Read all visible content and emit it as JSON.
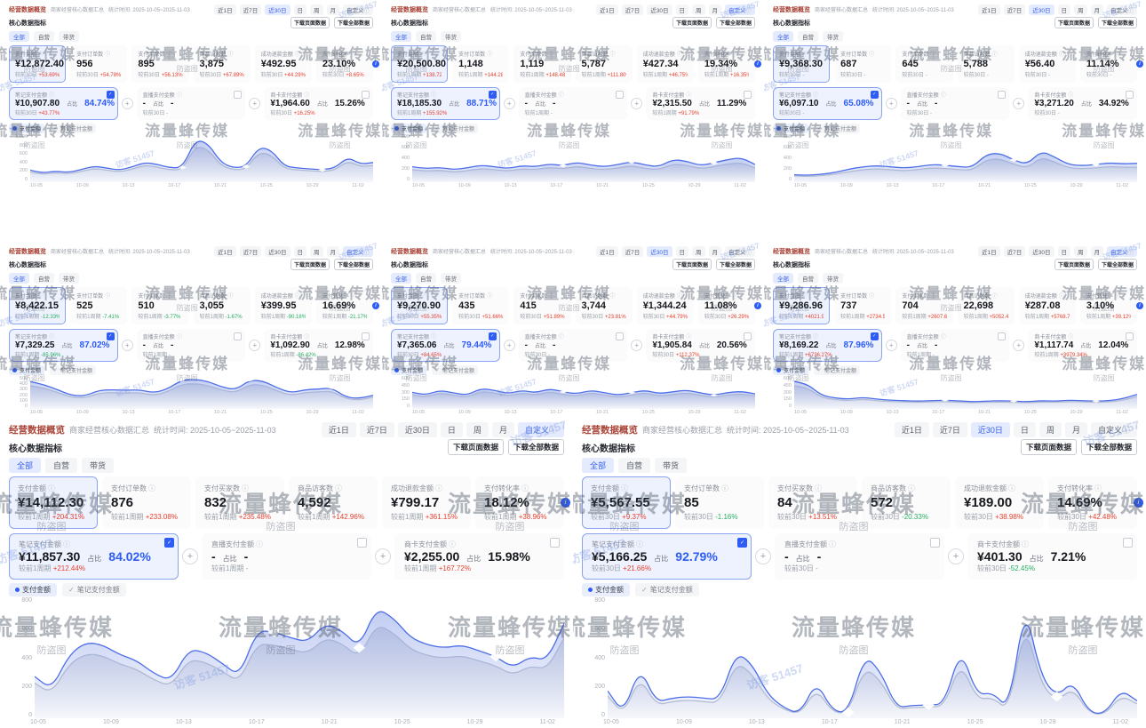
{
  "shared": {
    "title": "经营数据概览",
    "subtitle": "商家经营核心数据汇总",
    "section_title": "核心数据指标",
    "ranges": [
      "近1日",
      "近7日",
      "近30日",
      "日",
      "周",
      "月",
      "自定义"
    ],
    "custom_mark": "ⓘ",
    "downloads": [
      "下载页面数据",
      "下载全部数据"
    ],
    "tabs": [
      "全部",
      "自营",
      "带货"
    ],
    "metric_labels": [
      "支付金额",
      "支付订单数",
      "支付买家数",
      "商品访客数",
      "成功退款金额",
      "支付转化率"
    ],
    "row2_labels": [
      "笔记支付金额",
      "直播支付金额",
      "商卡支付金额"
    ],
    "ratio_label": "占比",
    "legend": [
      "支付金额",
      "笔记支付金额"
    ],
    "icons": {
      "info": "?",
      "plus": "+",
      "check": "✓",
      "info_i": "i"
    },
    "watermark": {
      "brand": "流量蜂传媒",
      "tag": "防盗图",
      "visitor": "访客 51457"
    },
    "x_labels": [
      "10-05",
      "10-09",
      "10-13",
      "10-17",
      "10-21",
      "10-25",
      "10-29",
      "11-02"
    ],
    "colors": {
      "accent": "#2d5cf6",
      "up_red": "#e8402e",
      "down_green": "#27ae60",
      "line_blue": "#4d6ee8",
      "line_gray": "#b9c0cf"
    }
  },
  "panels": [
    {
      "row": 1,
      "size": "sm",
      "active_range": 2,
      "stat_time": "统计时间: 2025-10-05~2025-11-03",
      "comp_prefix": "较前30日",
      "values": [
        "¥12,872.40",
        "956",
        "895",
        "3,875",
        "¥492.95",
        "23.10%"
      ],
      "comps": [
        "+53.69%",
        "+54.78%",
        "+56.13%",
        "+67.89%",
        "+44.29%",
        "+8.65%"
      ],
      "row2": [
        {
          "value": "¥10,907.80",
          "pct": "84.74%",
          "comp": "+43.77%"
        },
        {
          "value": "-",
          "pct": "-",
          "comp": "-"
        },
        {
          "value": "¥1,964.60",
          "pct": "15.26%",
          "comp": "+16.25%"
        }
      ],
      "chart": {
        "ymax": 1000,
        "yticks": [
          "1,000",
          "800",
          "600",
          "400",
          "200",
          "0"
        ],
        "line": [
          250,
          190,
          230,
          200,
          260,
          340,
          300,
          250,
          320,
          420,
          380,
          300,
          310,
          920,
          840,
          420,
          300,
          330,
          760,
          690,
          340,
          300,
          280,
          260,
          300,
          540,
          380,
          420
        ],
        "line2": [
          210,
          160,
          195,
          170,
          220,
          290,
          255,
          210,
          270,
          360,
          320,
          255,
          265,
          780,
          715,
          355,
          255,
          280,
          645,
          585,
          290,
          255,
          240,
          220,
          255,
          460,
          325,
          355
        ]
      }
    },
    {
      "row": 1,
      "size": "sm",
      "active_range": 6,
      "stat_time": "统计时间: 2025-10-05~2025-11-03",
      "comp_prefix": "较前1周期",
      "values": [
        "¥20,500.80",
        "1,148",
        "1,119",
        "5,787",
        "¥427.34",
        "19.34%"
      ],
      "comps": [
        "+138.72%",
        "+144.28%",
        "+148.48%",
        "+111.80%",
        "+46.75%",
        "+16.35%"
      ],
      "row2": [
        {
          "value": "¥18,185.30",
          "pct": "88.71%",
          "comp": "+155.92%"
        },
        {
          "value": "-",
          "pct": "-",
          "comp": "-"
        },
        {
          "value": "¥2,315.50",
          "pct": "11.29%",
          "comp": "+91.79%"
        }
      ],
      "chart": {
        "ymax": 800,
        "yticks": [
          "800",
          "600",
          "400",
          "200",
          "0"
        ],
        "line": [
          260,
          230,
          250,
          210,
          240,
          290,
          260,
          230,
          280,
          260,
          310,
          280,
          340,
          290,
          260,
          300,
          350,
          290,
          260,
          390,
          360,
          280,
          330,
          390,
          420,
          300
        ],
        "line2": [
          210,
          185,
          200,
          170,
          190,
          230,
          210,
          185,
          225,
          210,
          250,
          225,
          270,
          230,
          210,
          240,
          280,
          230,
          210,
          310,
          290,
          225,
          265,
          310,
          335,
          240
        ]
      }
    },
    {
      "row": 1,
      "size": "sm",
      "active_range": 2,
      "stat_time": "统计时间: 2025-10-05~2025-11-03",
      "comp_prefix": "较前30日",
      "values": [
        "¥9,368.30",
        "687",
        "645",
        "5,788",
        "¥56.40",
        "11.14%"
      ],
      "comps": [
        "-",
        "-",
        "-",
        "-",
        "-",
        "-"
      ],
      "row2": [
        {
          "value": "¥6,097.10",
          "pct": "65.08%",
          "comp": "-"
        },
        {
          "value": "-",
          "pct": "-",
          "comp": "-"
        },
        {
          "value": "¥3,271.20",
          "pct": "34.92%",
          "comp": "-"
        }
      ],
      "chart": {
        "ymax": 800,
        "yticks": [
          "800",
          "600",
          "400",
          "200",
          "0"
        ],
        "line": [
          120,
          110,
          130,
          160,
          220,
          260,
          280,
          260,
          240,
          260,
          300,
          290,
          260,
          250,
          480,
          500,
          380,
          300,
          540,
          430,
          300,
          280,
          300,
          330,
          310,
          320
        ],
        "line2": [
          100,
          90,
          105,
          130,
          175,
          210,
          225,
          210,
          190,
          210,
          240,
          230,
          210,
          200,
          385,
          400,
          305,
          240,
          430,
          345,
          240,
          225,
          240,
          265,
          250,
          255
        ]
      }
    },
    {
      "row": 2,
      "size": "sm",
      "active_range": 6,
      "stat_time": "统计时间: 2025-10-05~2025-11-03",
      "comp_prefix": "较前1周期",
      "values": [
        "¥8,422.15",
        "525",
        "510",
        "3,055",
        "¥399.95",
        "16.69%"
      ],
      "comps": [
        "-12.33%",
        "-7.41%",
        "-3.77%",
        "-1.67%",
        "-90.18%",
        "-21.17%"
      ],
      "row2": [
        {
          "value": "¥7,329.25",
          "pct": "87.02%",
          "comp": "-85.96%"
        },
        {
          "value": "-",
          "pct": "-",
          "comp": "-"
        },
        {
          "value": "¥1,092.90",
          "pct": "12.98%",
          "comp": "-86.42%"
        }
      ],
      "chart": {
        "ymax": 500,
        "yticks": [
          "500",
          "400",
          "300",
          "200",
          "100",
          "0"
        ],
        "line": [
          430,
          380,
          300,
          210,
          200,
          290,
          300,
          290,
          300,
          250,
          310,
          450,
          470,
          430,
          340,
          300,
          455,
          440,
          330,
          250,
          300,
          310,
          330,
          180,
          160,
          210
        ],
        "line2": [
          365,
          325,
          255,
          180,
          170,
          245,
          255,
          245,
          255,
          210,
          265,
          385,
          400,
          365,
          290,
          255,
          385,
          375,
          280,
          210,
          255,
          265,
          280,
          155,
          135,
          180
        ]
      }
    },
    {
      "row": 2,
      "size": "sm",
      "active_range": 2,
      "stat_time": "统计时间: 2025-10-05~2025-11-03",
      "comp_prefix": "较前30日",
      "values": [
        "¥9,270.90",
        "435",
        "415",
        "3,744",
        "¥1,344.24",
        "11.08%"
      ],
      "comps": [
        "+55.35%",
        "+51.66%",
        "+51.89%",
        "+23.81%",
        "+44.79%",
        "+26.29%"
      ],
      "row2": [
        {
          "value": "¥7,365.06",
          "pct": "79.44%",
          "comp": "+84.65%"
        },
        {
          "value": "-",
          "pct": "-",
          "comp": "-"
        },
        {
          "value": "¥1,905.84",
          "pct": "20.56%",
          "comp": "+112.37%"
        }
      ],
      "chart": {
        "ymax": 600,
        "yticks": [
          "600",
          "450",
          "300",
          "150",
          "0"
        ],
        "line": [
          310,
          260,
          350,
          300,
          255,
          385,
          350,
          285,
          350,
          300,
          380,
          320,
          280,
          350,
          305,
          255,
          305,
          350,
          285,
          320,
          355,
          300,
          255,
          305,
          330,
          280
        ],
        "line2": [
          265,
          220,
          300,
          255,
          215,
          330,
          300,
          240,
          300,
          255,
          325,
          270,
          240,
          300,
          260,
          215,
          260,
          300,
          240,
          270,
          300,
          255,
          215,
          260,
          280,
          240
        ]
      }
    },
    {
      "row": 2,
      "size": "sm",
      "active_range": 6,
      "stat_time": "统计时间: 2025-10-05~2025-11-03",
      "comp_prefix": "较前1周期",
      "values": [
        "¥9,286.96",
        "737",
        "704",
        "22,698",
        "¥287.08",
        "3.10%"
      ],
      "comps": [
        "+4021.98%",
        "+2734.52%",
        "+2607.60%",
        "+5052.46%",
        "+5768.79%",
        "+39.12%"
      ],
      "row2": [
        {
          "value": "¥8,169.22",
          "pct": "87.96%",
          "comp": "+6736.27%"
        },
        {
          "value": "-",
          "pct": "-",
          "comp": "-"
        },
        {
          "value": "¥1,117.74",
          "pct": "12.04%",
          "comp": "+3979.34%"
        }
      ],
      "chart": {
        "ymax": 600,
        "yticks": [
          "600",
          "450",
          "300",
          "150",
          "0"
        ],
        "line": [
          520,
          460,
          250,
          200,
          180,
          215,
          180,
          160,
          150,
          140,
          150,
          160,
          145,
          130,
          140,
          150,
          140,
          130,
          150,
          140,
          160,
          150,
          140,
          150,
          190,
          270
        ],
        "line2": [
          440,
          390,
          210,
          170,
          150,
          180,
          150,
          135,
          125,
          120,
          125,
          135,
          120,
          110,
          120,
          125,
          120,
          110,
          125,
          120,
          135,
          125,
          120,
          125,
          160,
          230
        ]
      }
    },
    {
      "row": 3,
      "size": "lg",
      "active_range": 6,
      "stat_time": "统计时间: 2025-10-05~2025-11-03",
      "comp_prefix": "较前1周期",
      "values": [
        "¥14,112.30",
        "876",
        "832",
        "4,592",
        "¥799.17",
        "18.12%"
      ],
      "comps": [
        "+204.31%",
        "+233.08%",
        "+235.48%",
        "+142.96%",
        "+361.15%",
        "+38.96%"
      ],
      "row2": [
        {
          "value": "¥11,857.30",
          "pct": "84.02%",
          "comp": "+212.44%"
        },
        {
          "value": "-",
          "pct": "-",
          "comp": "-"
        },
        {
          "value": "¥2,255.00",
          "pct": "15.98%",
          "comp": "+167.72%"
        }
      ],
      "chart": {
        "ymax": 800,
        "yticks": [
          "800",
          "600",
          "400",
          "200",
          "0"
        ],
        "line": [
          280,
          190,
          430,
          520,
          500,
          430,
          390,
          300,
          250,
          470,
          450,
          370,
          280,
          600,
          590,
          550,
          520,
          650,
          600,
          480,
          760,
          690,
          550,
          500,
          480,
          500,
          460,
          420,
          340,
          420,
          390,
          650
        ],
        "line2": [
          235,
          160,
          365,
          440,
          425,
          365,
          330,
          255,
          210,
          400,
          380,
          315,
          240,
          510,
          500,
          470,
          440,
          550,
          510,
          410,
          645,
          585,
          470,
          425,
          410,
          425,
          390,
          355,
          290,
          355,
          330,
          550
        ]
      }
    },
    {
      "row": 3,
      "size": "lg",
      "active_range": 2,
      "stat_time": "统计时间: 2025-10-05~2025-11-03",
      "comp_prefix": "较前30日",
      "values": [
        "¥5,567.55",
        "85",
        "84",
        "572",
        "¥189.00",
        "14.69%"
      ],
      "comps": [
        "+9.37%",
        "-1.16%",
        "+13.51%",
        "-20.33%",
        "+38.98%",
        "+42.48%"
      ],
      "row2": [
        {
          "value": "¥5,166.25",
          "pct": "92.79%",
          "comp": "+21.66%"
        },
        {
          "value": "-",
          "pct": "-",
          "comp": "-"
        },
        {
          "value": "¥401.30",
          "pct": "7.21%",
          "comp": "-52.45%"
        }
      ],
      "chart": {
        "ymax": 800,
        "yticks": [
          "800",
          "600",
          "400",
          "200",
          "0"
        ],
        "line": [
          180,
          20,
          350,
          100,
          130,
          140,
          130,
          120,
          450,
          370,
          150,
          60,
          20,
          250,
          40,
          30,
          430,
          320,
          60,
          80,
          80,
          90,
          480,
          150,
          170,
          50,
          790,
          280,
          140,
          250,
          30,
          20,
          190,
          110
        ],
        "line2": [
          145,
          15,
          280,
          80,
          105,
          115,
          105,
          95,
          380,
          300,
          120,
          50,
          15,
          200,
          30,
          25,
          345,
          255,
          50,
          65,
          65,
          75,
          385,
          120,
          135,
          40,
          670,
          225,
          110,
          200,
          25,
          15,
          150,
          90
        ]
      }
    }
  ]
}
